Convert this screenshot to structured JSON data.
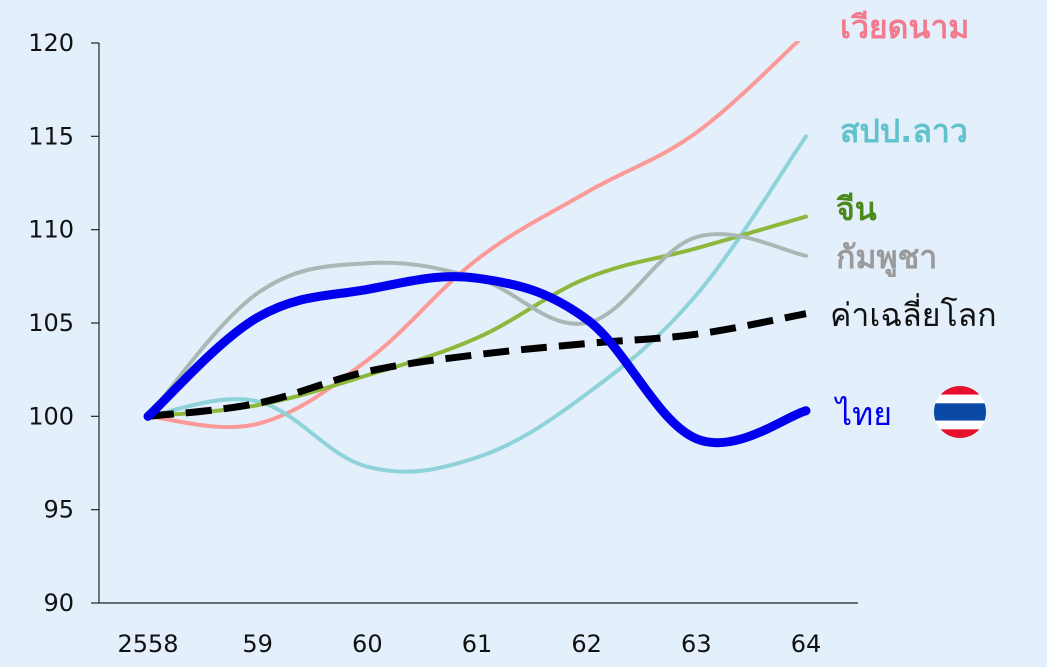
{
  "chart_data": {
    "type": "line",
    "title": "",
    "xlabel": "",
    "ylabel": "",
    "categories": [
      "2558",
      "59",
      "60",
      "61",
      "62",
      "63",
      "64"
    ],
    "ylim": [
      90,
      120
    ],
    "yticks": [
      90,
      95,
      100,
      105,
      110,
      115,
      120
    ],
    "grid": false,
    "legend": "right",
    "series": [
      {
        "name": "เวียดนาม",
        "color": "#fb9a99",
        "emphasis": "thin",
        "label_bold": true,
        "values": [
          100,
          99.6,
          103,
          108.4,
          112,
          115.2,
          120.5
        ]
      },
      {
        "name": "สปป.ลาว",
        "color": "#8ed2da",
        "emphasis": "thin",
        "label_bold": true,
        "values": [
          100,
          100.8,
          97.3,
          97.8,
          101.2,
          106.5,
          115
        ]
      },
      {
        "name": "จีน",
        "color": "#8db83c",
        "emphasis": "thin",
        "label_bold": true,
        "values": [
          100,
          100.6,
          102.2,
          104.2,
          107.4,
          109,
          110.7
        ]
      },
      {
        "name": "กัมพูชา",
        "color": "#a9b8b5",
        "emphasis": "thin",
        "label_bold": true,
        "values": [
          100,
          106.6,
          108.2,
          107.4,
          105,
          109.6,
          108.6
        ]
      },
      {
        "name": "ค่าเฉลี่ยโลก",
        "color": "#000000",
        "emphasis": "dashed",
        "label_bold": false,
        "values": [
          100,
          100.7,
          102.4,
          103.3,
          103.9,
          104.4,
          105.5
        ]
      },
      {
        "name": "ไทย",
        "color": "#0000ee",
        "emphasis": "bold",
        "label_bold": false,
        "values": [
          100,
          105.3,
          106.8,
          107.4,
          105.2,
          98.8,
          100.3
        ]
      }
    ]
  }
}
